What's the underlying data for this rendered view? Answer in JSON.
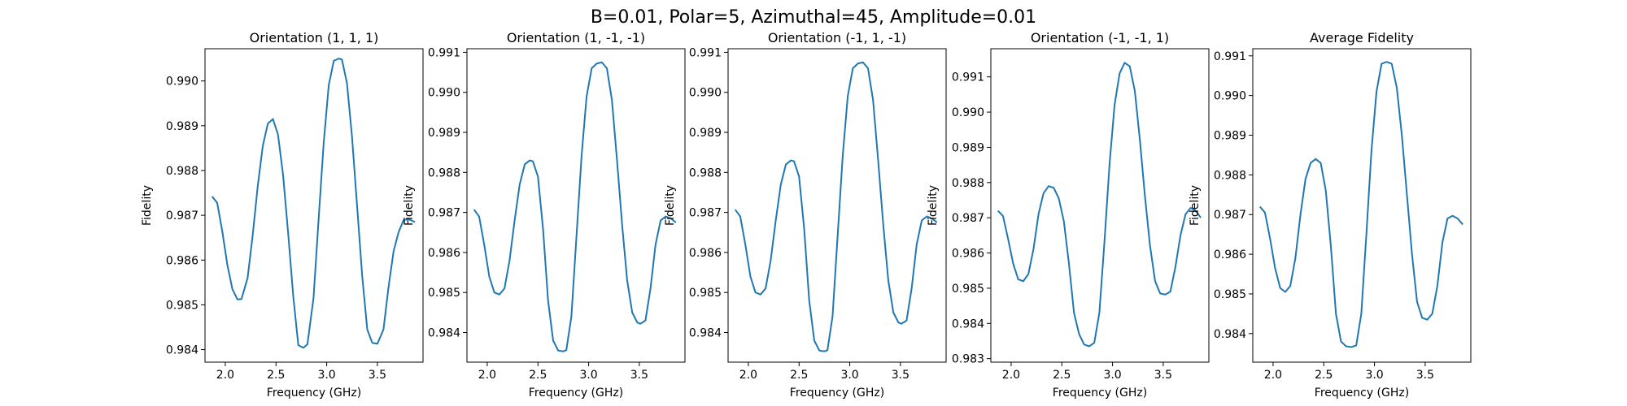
{
  "figure": {
    "suptitle": "B=0.01, Polar=5, Azimuthal=45, Amplitude=0.01",
    "line_color": "#1f77b4"
  },
  "chart_data": [
    {
      "type": "line",
      "title": "Orientation (1, 1, 1)",
      "xlabel": "Frequency (GHz)",
      "ylabel": "Fidelity",
      "xlim": [
        1.8,
        3.95
      ],
      "ylim": [
        0.98372,
        0.99072
      ],
      "xticks": [
        2.0,
        2.5,
        3.0,
        3.5
      ],
      "xtick_labels": [
        "2.0",
        "2.5",
        "3.0",
        "3.5"
      ],
      "yticks": [
        0.984,
        0.985,
        0.986,
        0.987,
        0.988,
        0.989,
        0.99
      ],
      "ytick_labels": [
        "0.984",
        "0.985",
        "0.986",
        "0.987",
        "0.988",
        "0.989",
        "0.990"
      ],
      "grid": false,
      "series": [
        {
          "x": [
            1.87,
            1.92,
            1.97,
            2.02,
            2.07,
            2.12,
            2.16,
            2.22,
            2.27,
            2.32,
            2.37,
            2.42,
            2.47,
            2.52,
            2.57,
            2.62,
            2.67,
            2.72,
            2.77,
            2.81,
            2.87,
            2.92,
            2.97,
            3.02,
            3.07,
            3.12,
            3.15,
            3.2,
            3.25,
            3.3,
            3.35,
            3.4,
            3.45,
            3.5,
            3.56,
            3.61,
            3.66,
            3.71,
            3.76,
            3.81,
            3.87
          ],
          "y": [
            0.98742,
            0.98728,
            0.98665,
            0.9859,
            0.98535,
            0.98512,
            0.98513,
            0.9856,
            0.98655,
            0.98765,
            0.98855,
            0.98905,
            0.98915,
            0.9888,
            0.9879,
            0.9866,
            0.9852,
            0.9841,
            0.98404,
            0.98412,
            0.98515,
            0.9869,
            0.9886,
            0.9899,
            0.99045,
            0.9905,
            0.99048,
            0.98995,
            0.98875,
            0.9872,
            0.98565,
            0.98445,
            0.98415,
            0.98413,
            0.98445,
            0.9854,
            0.9862,
            0.98663,
            0.9869,
            0.98691,
            0.98685
          ]
        }
      ]
    },
    {
      "type": "line",
      "title": "Orientation (1, -1, -1)",
      "xlabel": "Frequency (GHz)",
      "ylabel": "Fidelity",
      "xlim": [
        1.8,
        3.95
      ],
      "ylim": [
        0.98326,
        0.99109
      ],
      "xticks": [
        2.0,
        2.5,
        3.0,
        3.5
      ],
      "xtick_labels": [
        "2.0",
        "2.5",
        "3.0",
        "3.5"
      ],
      "yticks": [
        0.984,
        0.985,
        0.986,
        0.987,
        0.988,
        0.989,
        0.99,
        0.991
      ],
      "ytick_labels": [
        "0.984",
        "0.985",
        "0.986",
        "0.987",
        "0.988",
        "0.989",
        "0.990",
        "0.991"
      ],
      "grid": false,
      "series": [
        {
          "x": [
            1.87,
            1.92,
            1.97,
            2.02,
            2.07,
            2.12,
            2.17,
            2.22,
            2.27,
            2.32,
            2.37,
            2.42,
            2.45,
            2.5,
            2.55,
            2.6,
            2.65,
            2.7,
            2.75,
            2.78,
            2.83,
            2.88,
            2.93,
            2.98,
            3.03,
            3.08,
            3.13,
            3.18,
            3.23,
            3.28,
            3.33,
            3.38,
            3.43,
            3.48,
            3.51,
            3.56,
            3.61,
            3.66,
            3.71,
            3.76,
            3.81,
            3.86
          ],
          "y": [
            0.98707,
            0.9869,
            0.9862,
            0.9854,
            0.985,
            0.98495,
            0.9851,
            0.9858,
            0.9868,
            0.9877,
            0.9882,
            0.9883,
            0.98828,
            0.9879,
            0.9866,
            0.9848,
            0.9838,
            0.98355,
            0.98353,
            0.98356,
            0.9844,
            0.9864,
            0.9884,
            0.9899,
            0.9906,
            0.99072,
            0.99075,
            0.9906,
            0.9898,
            0.9883,
            0.9867,
            0.9853,
            0.9845,
            0.98425,
            0.98422,
            0.9843,
            0.9851,
            0.9862,
            0.9868,
            0.9869,
            0.98685,
            0.98675
          ]
        }
      ]
    },
    {
      "type": "line",
      "title": "Orientation (-1, 1, -1)",
      "xlabel": "Frequency (GHz)",
      "ylabel": "Fidelity",
      "xlim": [
        1.8,
        3.95
      ],
      "ylim": [
        0.98326,
        0.99109
      ],
      "xticks": [
        2.0,
        2.5,
        3.0,
        3.5
      ],
      "xtick_labels": [
        "2.0",
        "2.5",
        "3.0",
        "3.5"
      ],
      "yticks": [
        0.984,
        0.985,
        0.986,
        0.987,
        0.988,
        0.989,
        0.99,
        0.991
      ],
      "ytick_labels": [
        "0.984",
        "0.985",
        "0.986",
        "0.987",
        "0.988",
        "0.989",
        "0.990",
        "0.991"
      ],
      "grid": false,
      "series": [
        {
          "x": [
            1.87,
            1.92,
            1.97,
            2.02,
            2.07,
            2.12,
            2.17,
            2.22,
            2.27,
            2.32,
            2.37,
            2.42,
            2.45,
            2.5,
            2.55,
            2.6,
            2.65,
            2.7,
            2.75,
            2.78,
            2.83,
            2.88,
            2.93,
            2.98,
            3.03,
            3.08,
            3.13,
            3.18,
            3.23,
            3.28,
            3.33,
            3.38,
            3.43,
            3.48,
            3.51,
            3.56,
            3.61,
            3.66,
            3.71,
            3.76,
            3.81,
            3.86
          ],
          "y": [
            0.98707,
            0.9869,
            0.9862,
            0.9854,
            0.985,
            0.98495,
            0.9851,
            0.9858,
            0.9868,
            0.9877,
            0.9882,
            0.9883,
            0.98828,
            0.9879,
            0.9866,
            0.9848,
            0.9838,
            0.98355,
            0.98353,
            0.98356,
            0.9844,
            0.9864,
            0.9884,
            0.9899,
            0.9906,
            0.99072,
            0.99075,
            0.9906,
            0.9898,
            0.9883,
            0.9867,
            0.9853,
            0.9845,
            0.98425,
            0.98422,
            0.9843,
            0.9851,
            0.9862,
            0.9868,
            0.9869,
            0.98685,
            0.98675
          ]
        }
      ]
    },
    {
      "type": "line",
      "title": "Orientation (-1, -1, 1)",
      "xlabel": "Frequency (GHz)",
      "ylabel": "Fidelity",
      "xlim": [
        1.8,
        3.95
      ],
      "ylim": [
        0.9829,
        0.9918
      ],
      "xticks": [
        2.0,
        2.5,
        3.0,
        3.5
      ],
      "xtick_labels": [
        "2.0",
        "2.5",
        "3.0",
        "3.5"
      ],
      "yticks": [
        0.983,
        0.984,
        0.985,
        0.986,
        0.987,
        0.988,
        0.989,
        0.99,
        0.991
      ],
      "ytick_labels": [
        "0.983",
        "0.984",
        "0.985",
        "0.986",
        "0.987",
        "0.988",
        "0.989",
        "0.990",
        "0.991"
      ],
      "grid": false,
      "series": [
        {
          "x": [
            1.87,
            1.92,
            1.97,
            2.02,
            2.07,
            2.12,
            2.17,
            2.22,
            2.27,
            2.32,
            2.37,
            2.42,
            2.47,
            2.52,
            2.57,
            2.62,
            2.67,
            2.72,
            2.77,
            2.82,
            2.87,
            2.92,
            2.97,
            3.02,
            3.07,
            3.12,
            3.17,
            3.22,
            3.27,
            3.32,
            3.37,
            3.42,
            3.47,
            3.52,
            3.57,
            3.62,
            3.67,
            3.72,
            3.77,
            3.82,
            3.87
          ],
          "y": [
            0.9872,
            0.98705,
            0.9864,
            0.9857,
            0.98525,
            0.9852,
            0.9854,
            0.9861,
            0.9871,
            0.9877,
            0.9879,
            0.98785,
            0.98755,
            0.9869,
            0.9857,
            0.9843,
            0.9837,
            0.9834,
            0.98335,
            0.98345,
            0.9843,
            0.9863,
            0.9885,
            0.9902,
            0.9911,
            0.9914,
            0.9913,
            0.9906,
            0.9892,
            0.9876,
            0.9862,
            0.9852,
            0.98485,
            0.98482,
            0.9849,
            0.9856,
            0.9865,
            0.9871,
            0.98728,
            0.9872,
            0.987
          ]
        }
      ]
    },
    {
      "type": "line",
      "title": "Average Fidelity",
      "xlabel": "Frequency (GHz)",
      "ylabel": "Fidelity",
      "xlim": [
        1.8,
        3.95
      ],
      "ylim": [
        0.98328,
        0.99118
      ],
      "xticks": [
        2.0,
        2.5,
        3.0,
        3.5
      ],
      "xtick_labels": [
        "2.0",
        "2.5",
        "3.0",
        "3.5"
      ],
      "yticks": [
        0.984,
        0.985,
        0.986,
        0.987,
        0.988,
        0.989,
        0.99,
        0.991
      ],
      "ytick_labels": [
        "0.984",
        "0.985",
        "0.986",
        "0.987",
        "0.988",
        "0.989",
        "0.990",
        "0.991"
      ],
      "grid": false,
      "series": [
        {
          "x": [
            1.87,
            1.92,
            1.97,
            2.02,
            2.07,
            2.12,
            2.17,
            2.22,
            2.27,
            2.32,
            2.37,
            2.42,
            2.47,
            2.52,
            2.57,
            2.62,
            2.67,
            2.72,
            2.77,
            2.82,
            2.87,
            2.92,
            2.97,
            3.02,
            3.07,
            3.12,
            3.17,
            3.22,
            3.27,
            3.32,
            3.37,
            3.42,
            3.47,
            3.52,
            3.57,
            3.62,
            3.67,
            3.72,
            3.77,
            3.82,
            3.87
          ],
          "y": [
            0.9872,
            0.98705,
            0.9864,
            0.98565,
            0.98515,
            0.98505,
            0.9852,
            0.9859,
            0.987,
            0.9879,
            0.9883,
            0.9884,
            0.9883,
            0.9876,
            0.9862,
            0.9845,
            0.9838,
            0.98368,
            0.98366,
            0.9837,
            0.9845,
            0.9865,
            0.9886,
            0.9901,
            0.9908,
            0.99085,
            0.9908,
            0.9902,
            0.989,
            0.9875,
            0.986,
            0.9848,
            0.9844,
            0.98435,
            0.9845,
            0.9852,
            0.9863,
            0.9869,
            0.98697,
            0.9869,
            0.98675
          ]
        }
      ]
    }
  ]
}
